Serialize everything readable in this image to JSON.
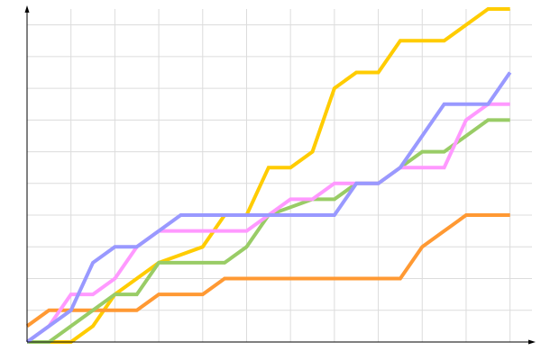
{
  "chart_data": {
    "type": "line",
    "x": [
      0,
      1,
      2,
      3,
      4,
      5,
      6,
      7,
      8,
      9,
      10,
      11,
      12,
      13,
      14,
      15,
      16,
      17,
      18,
      19,
      20,
      21,
      22
    ],
    "series": [
      {
        "color": "#ffcc00",
        "values": [
          0,
          0,
          0,
          1,
          3,
          4,
          5,
          5.5,
          6,
          8,
          8,
          11,
          11,
          12,
          16,
          17,
          17,
          19,
          19,
          19,
          20,
          21,
          21
        ]
      },
      {
        "color": "#ff9933",
        "values": [
          1,
          2,
          2,
          2,
          2,
          2,
          3,
          3,
          3,
          4,
          4,
          4,
          4,
          4,
          4,
          4,
          4,
          4,
          6,
          7,
          8,
          8,
          8
        ]
      },
      {
        "color": "#99cc66",
        "values": [
          0,
          0,
          1,
          2,
          3,
          3,
          5,
          5,
          5,
          5,
          6,
          8,
          8.5,
          9,
          9,
          10,
          10,
          11,
          12,
          12,
          13,
          14,
          14
        ]
      },
      {
        "color": "#ff99ff",
        "values": [
          0,
          1,
          3,
          3,
          4,
          6,
          7,
          7,
          7,
          7,
          7,
          8,
          9,
          9,
          10,
          10,
          10,
          11,
          11,
          11,
          14,
          15,
          15
        ]
      },
      {
        "color": "#9999ff",
        "values": [
          0,
          1,
          2,
          5,
          6,
          6,
          7,
          8,
          8,
          8,
          8,
          8,
          8,
          8,
          8,
          10,
          10,
          11,
          13,
          15,
          15,
          15,
          17
        ]
      }
    ],
    "xlim": [
      0,
      23
    ],
    "ylim": [
      0,
      21
    ],
    "xticks": [
      0,
      2,
      4,
      6,
      8,
      10,
      12,
      14,
      16,
      18,
      20,
      22
    ],
    "yticks": [
      0,
      2,
      4,
      6,
      8,
      10,
      12,
      14,
      16,
      18,
      20
    ],
    "grid": true
  }
}
